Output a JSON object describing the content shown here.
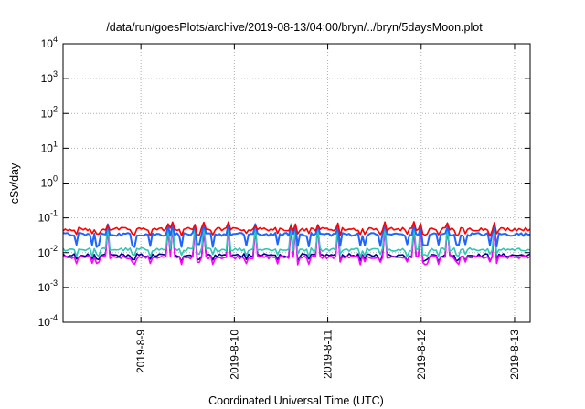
{
  "chart_data": {
    "type": "line",
    "title": "/data/run/goesPlots/archive/2019-08-13/04:00/bryn/../bryn/5daysMoon.plot",
    "xlabel": "Coordinated Universal Time (UTC)",
    "ylabel": "cSv/day",
    "y_scale": "log",
    "ylim": [
      0.0001,
      10000
    ],
    "y_ticks": [
      {
        "value": 0.0001,
        "base": "10",
        "exp": "-4"
      },
      {
        "value": 0.001,
        "base": "10",
        "exp": "-3"
      },
      {
        "value": 0.01,
        "base": "10",
        "exp": "-2"
      },
      {
        "value": 0.1,
        "base": "10",
        "exp": "-1"
      },
      {
        "value": 1,
        "base": "10",
        "exp": "0"
      },
      {
        "value": 10,
        "base": "10",
        "exp": "1"
      },
      {
        "value": 100,
        "base": "10",
        "exp": "2"
      },
      {
        "value": 1000,
        "base": "10",
        "exp": "3"
      },
      {
        "value": 10000,
        "base": "10",
        "exp": "4"
      }
    ],
    "xlim": [
      "2019-08-08 04:00",
      "2019-08-13 04:00"
    ],
    "x_ticks": [
      "2019-8-9",
      "2019-8-10",
      "2019-8-11",
      "2019-8-12",
      "2019-8-13"
    ],
    "grid": true,
    "legend": "none",
    "series": [
      {
        "color": "#ff0000",
        "baseline": 0.048,
        "dip_low": 0.033,
        "peak": 0.068
      },
      {
        "color": "#1e66ff",
        "baseline": 0.034,
        "dip_low": 0.016,
        "peak": 0.058
      },
      {
        "color": "#2ec7b4",
        "baseline": 0.0125,
        "dip_low": 0.0085,
        "peak": 0.06
      },
      {
        "color": "#000090",
        "baseline": 0.0085,
        "dip_low": 0.006,
        "peak": 0.055
      },
      {
        "color": "#ff00ff",
        "baseline": 0.0075,
        "dip_low": 0.005,
        "peak": 0.05
      }
    ]
  }
}
